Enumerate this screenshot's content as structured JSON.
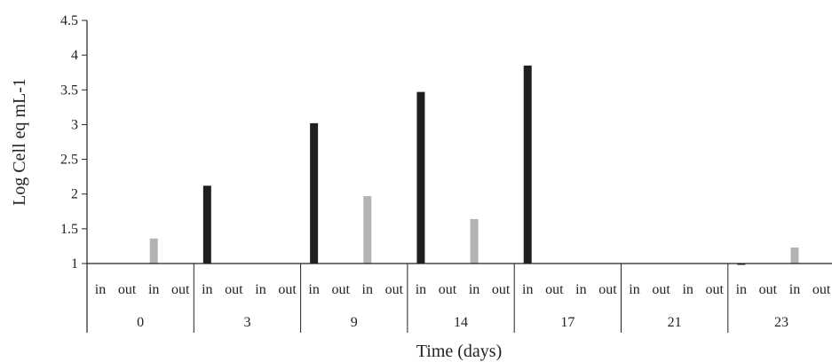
{
  "chart_data": {
    "type": "bar",
    "title": "",
    "xlabel": "Time (days)",
    "ylabel": "Log Cell eq mL-1",
    "ylim": [
      1,
      4.5
    ],
    "yticks": [
      "1",
      "1.5",
      "2",
      "2.5",
      "3",
      "3.5",
      "4",
      "4.5"
    ],
    "grid": false,
    "legend": "none",
    "categories": [
      "0",
      "3",
      "9",
      "14",
      "17",
      "21",
      "23"
    ],
    "subcategories": [
      "in",
      "out",
      "in",
      "out"
    ],
    "bar_slots": [
      0,
      2
    ],
    "colors": [
      "#1f1f1f",
      "#b3b3b3"
    ],
    "series": [
      {
        "values": [
          1.0,
          2.12,
          3.02,
          3.47,
          3.85,
          1.0,
          0.99
        ]
      },
      {
        "values": [
          1.36,
          1.0,
          1.97,
          1.64,
          1.0,
          1.0,
          1.23
        ]
      }
    ]
  }
}
